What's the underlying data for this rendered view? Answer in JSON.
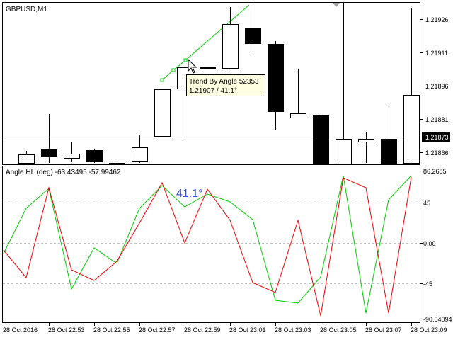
{
  "main_chart": {
    "symbol_label": "GBPUSD,M1",
    "price_labels": [
      "1.21926",
      "1.21911",
      "1.21896",
      "1.21881",
      "1.21866"
    ],
    "current_price": "1.21873",
    "tooltip": {
      "line1": "Trend By Angle 52353",
      "line2": "1.21907 / 41.1°"
    }
  },
  "indicator": {
    "label": "Angle HL (deg) -63.43495 -57.99462",
    "angle_annotation": "41.1°",
    "scale_labels": [
      "86.2685",
      "45",
      "0.00",
      "-45",
      "-90.54094"
    ]
  },
  "time_axis": {
    "labels": [
      "28 Oct 2016",
      "28 Oct 22:53",
      "28 Oct 22:55",
      "28 Oct 22:57",
      "28 Oct 22:59",
      "28 Oct 23:01",
      "28 Oct 23:03",
      "28 Oct 23:05",
      "28 Oct 23:07",
      "28 Oct 23:09"
    ]
  },
  "colors": {
    "green_line": "#00cc00",
    "red_line": "#ee0000",
    "annotation_blue": "#3355dd",
    "tooltip_bg": "#ffffe1"
  }
}
